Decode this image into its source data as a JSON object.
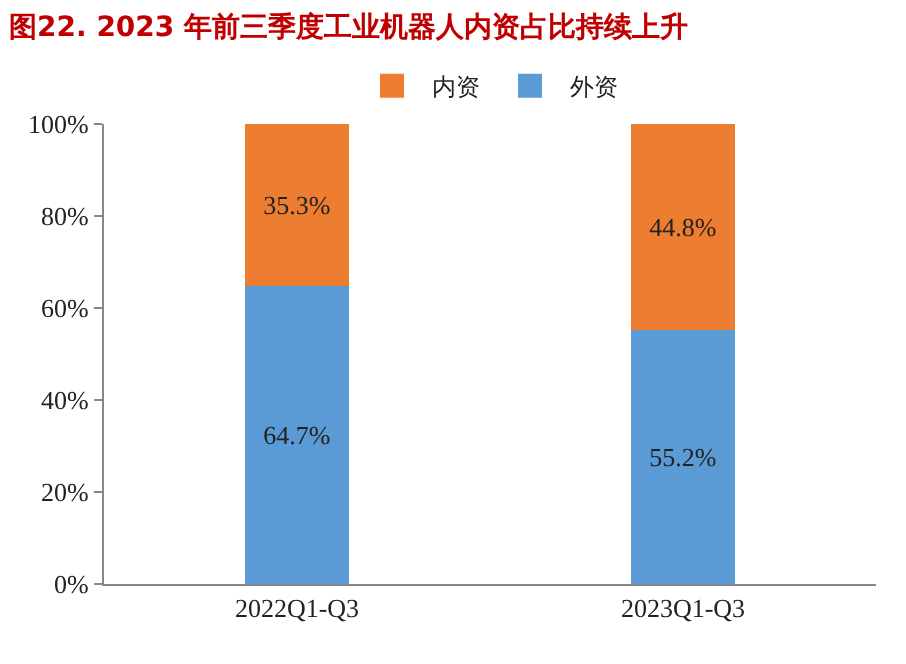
{
  "chart_data": {
    "type": "bar",
    "title": "图22. 2023 年前三季度工业机器人内资占比持续上升",
    "categories": [
      "2022Q1-Q3",
      "2023Q1-Q3"
    ],
    "stacked": true,
    "series": [
      {
        "name": "外资",
        "color": "#5b9bd5",
        "values": [
          64.7,
          55.2
        ],
        "value_labels": [
          "64.7%",
          "55.2%"
        ]
      },
      {
        "name": "内资",
        "color": "#ed7d31",
        "values": [
          35.3,
          44.8
        ],
        "value_labels": [
          "35.3%",
          "44.8%"
        ]
      }
    ],
    "ylim": [
      0,
      100
    ],
    "yticks": [
      {
        "value": 0,
        "label": "0%"
      },
      {
        "value": 20,
        "label": "20%"
      },
      {
        "value": 40,
        "label": "40%"
      },
      {
        "value": 60,
        "label": "60%"
      },
      {
        "value": 80,
        "label": "80%"
      },
      {
        "value": 100,
        "label": "100%"
      }
    ],
    "grid": false,
    "legend": "top"
  }
}
